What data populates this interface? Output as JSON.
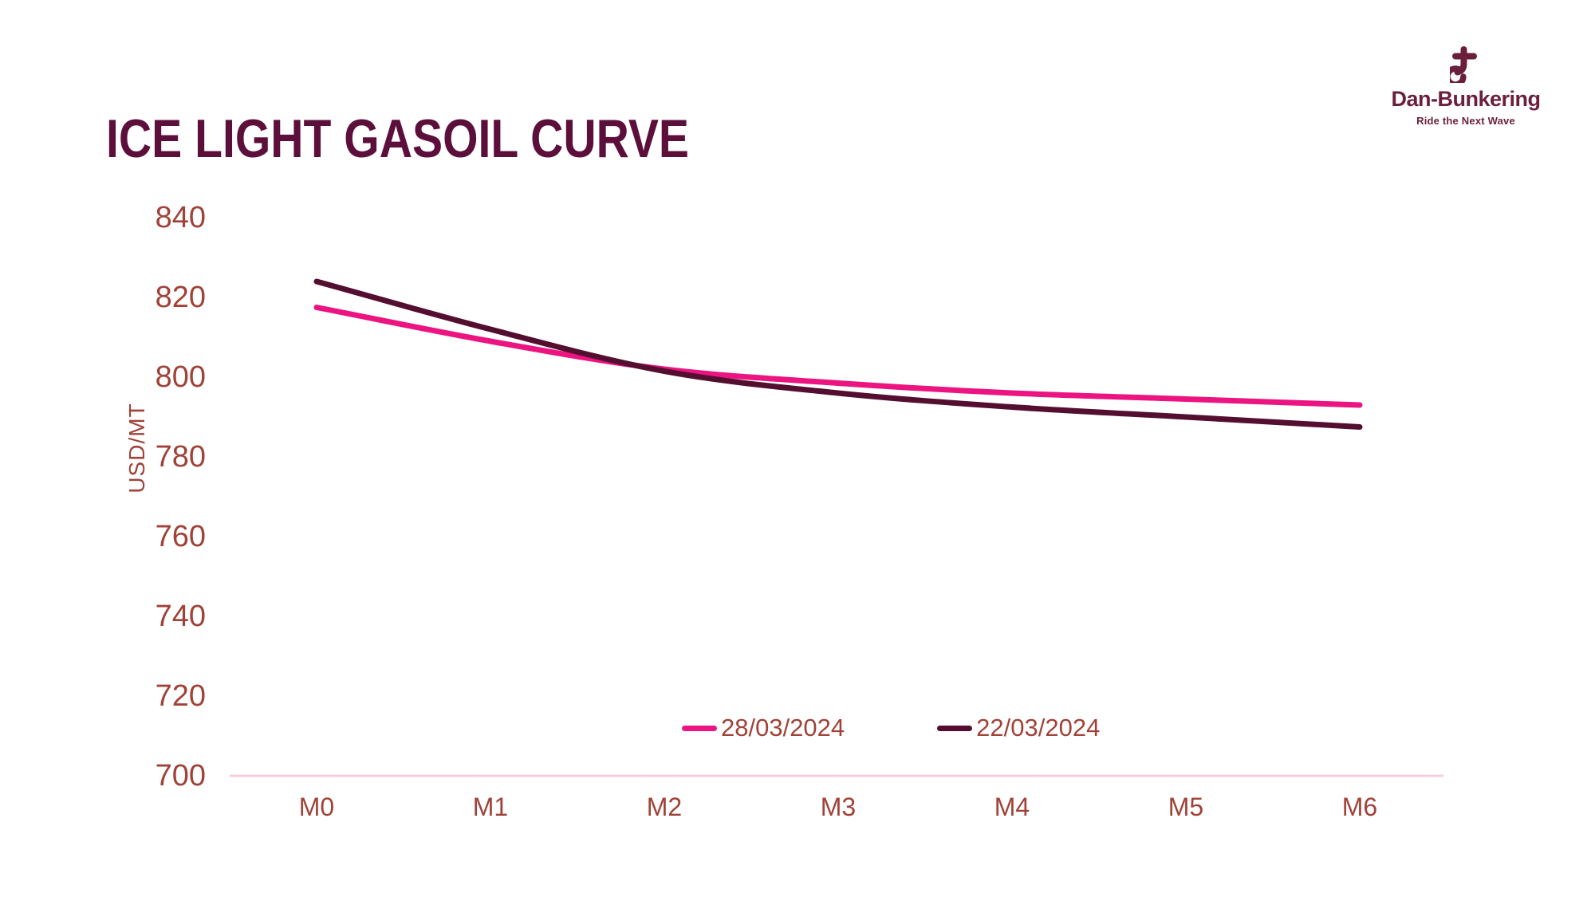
{
  "title": "ICE LIGHT GASOIL CURVE",
  "logo": {
    "name": "Dan-Bunkering",
    "tagline": "Ride the Next Wave",
    "icon": "anchor-b-mark",
    "color": "#6B1F3C"
  },
  "colors": {
    "title_text": "#5C0F3B",
    "axis_text": "#A04238",
    "axis_line": "#F8CCDF",
    "background": "#FFFFFF"
  },
  "chart_data": {
    "type": "line",
    "title": "ICE LIGHT GASOIL CURVE",
    "xlabel": "",
    "ylabel": "USD/MT",
    "categories": [
      "M0",
      "M1",
      "M2",
      "M3",
      "M4",
      "M5",
      "M6"
    ],
    "ylim": [
      700,
      840
    ],
    "yticks": [
      840,
      820,
      800,
      780,
      760,
      740,
      720,
      700
    ],
    "grid": false,
    "legend_position": "bottom-center-inside",
    "series": [
      {
        "name": "28/03/2024",
        "color": "#EB1480",
        "values": [
          817.5,
          809,
          802,
          798.5,
          796,
          794.5,
          793
        ]
      },
      {
        "name": "22/03/2024",
        "color": "#530E30",
        "values": [
          824,
          812,
          801.5,
          796,
          792.5,
          790,
          787.5
        ]
      }
    ]
  }
}
